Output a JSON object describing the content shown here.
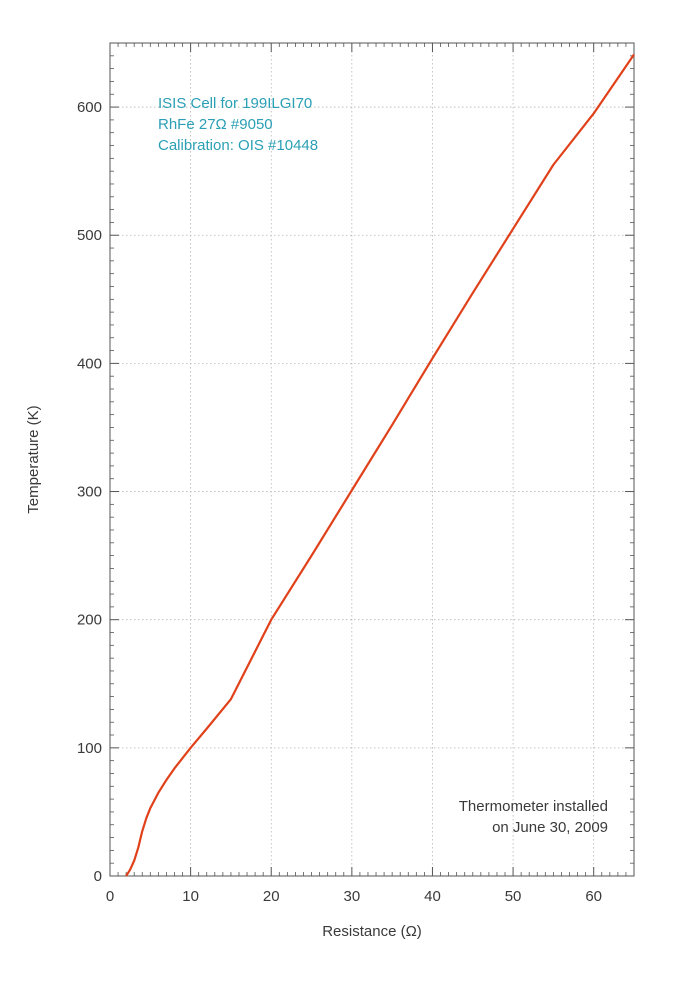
{
  "colors": {
    "line": "#e0411a",
    "annotation_blue": "#2a9fb5",
    "text": "#3a3a3a",
    "grid": "#b5b5b5",
    "frame": "#555555"
  },
  "chart_data": {
    "type": "line",
    "title": "",
    "xlabel": "Resistance (Ω)",
    "ylabel": "Temperature (K)",
    "xlim": [
      0,
      65
    ],
    "ylim": [
      0,
      650
    ],
    "xticks": [
      0,
      10,
      20,
      30,
      40,
      50,
      60
    ],
    "yticks": [
      0,
      100,
      200,
      300,
      400,
      500,
      600
    ],
    "xtick_labels": [
      "0",
      "10",
      "20",
      "30",
      "40",
      "50",
      "60"
    ],
    "ytick_labels": [
      "0",
      "100",
      "200",
      "300",
      "400",
      "500",
      "600"
    ],
    "grid": true,
    "series": [
      {
        "color": "#e0411a",
        "x": [
          2.0,
          2.5,
          3.0,
          3.5,
          4.0,
          4.5,
          5.0,
          6.0,
          7.0,
          8.0,
          9.0,
          10.0,
          12.0,
          15.0,
          20.0,
          25.0,
          30.0,
          35.0,
          40.0,
          45.0,
          50.0,
          55.0,
          60.0,
          65.0
        ],
        "y": [
          0,
          5,
          12,
          22,
          35,
          45,
          53,
          65,
          75,
          84,
          92,
          100,
          115,
          138,
          200,
          250,
          301,
          352,
          404,
          455,
          505,
          555,
          595,
          641
        ]
      }
    ],
    "annotations": [
      {
        "lines": [
          "ISIS Cell for 199ILGI70",
          "RhFe 27Ω #9050",
          "Calibration: OIS #10448"
        ],
        "placement": "top-left"
      },
      {
        "lines": [
          "Thermometer installed",
          "on June 30, 2009"
        ],
        "placement": "bottom-right"
      }
    ]
  }
}
